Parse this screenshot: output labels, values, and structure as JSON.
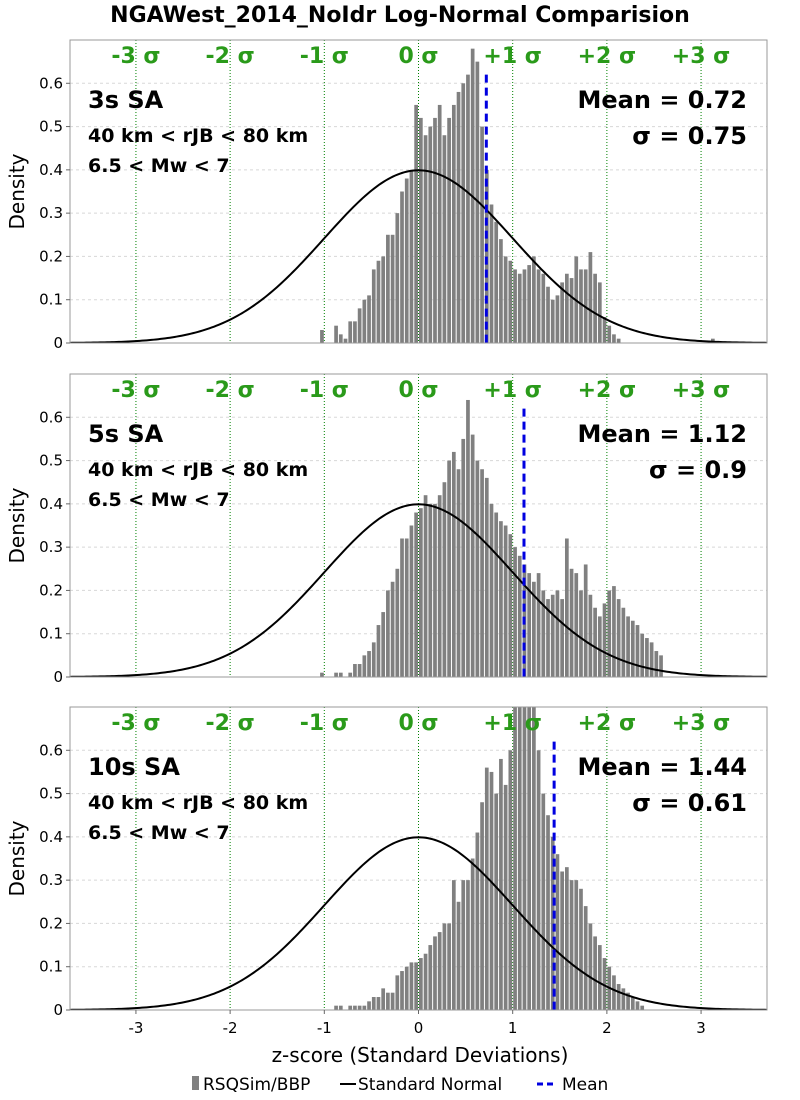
{
  "title": "NGAWest_2014_NoIdr Log-Normal Comparision",
  "xlabel": "z-score (Standard Deviations)",
  "ylabel": "Density",
  "xticks": [
    "-3",
    "-2",
    "-1",
    "0",
    "1",
    "2",
    "3"
  ],
  "yticks": [
    "0",
    "0.1",
    "0.2",
    "0.3",
    "0.4",
    "0.5",
    "0.6"
  ],
  "sigma_labels": [
    "-3 σ",
    "-2 σ",
    "-1 σ",
    "0 σ",
    "+1 σ",
    "+2 σ",
    "+3 σ"
  ],
  "legend": {
    "hist": "RSQSim/BBP",
    "normal": "Standard Normal",
    "mean": "Mean"
  },
  "colors": {
    "bars": "#808080",
    "mean": "#0000e0",
    "sigma_lines": "#008000",
    "sigma_text": "#2a9a1a"
  },
  "chart_data": [
    {
      "type": "bar",
      "label": "3s SA",
      "range_text": "40 km < rJB < 80 km",
      "mag_text": "6.5 < Mw < 7",
      "mean_text": "Mean = 0.72",
      "sigma_text": "σ = 0.75",
      "mean": 0.72,
      "bin_start": -1.05,
      "bin_width": 0.05,
      "densities": [
        0.03,
        0,
        0,
        0.04,
        0.02,
        0.01,
        0.05,
        0.05,
        0.08,
        0.1,
        0.11,
        0.17,
        0.19,
        0.2,
        0.25,
        0.25,
        0.3,
        0.35,
        0.38,
        0.4,
        0.55,
        0.52,
        0.48,
        0.5,
        0.52,
        0.55,
        0.48,
        0.52,
        0.55,
        0.58,
        0.6,
        0.62,
        0.68,
        0.65,
        0.5,
        0.4,
        0.32,
        0.28,
        0.24,
        0.2,
        0.19,
        0.17,
        0.16,
        0.17,
        0.18,
        0.2,
        0.17,
        0.16,
        0.13,
        0.1,
        0.11,
        0.14,
        0.16,
        0.15,
        0.2,
        0.17,
        0.17,
        0.21,
        0.16,
        0.14,
        0.06,
        0.04,
        0.02,
        0.01,
        0,
        0,
        0,
        0,
        0,
        0,
        0,
        0,
        0,
        0,
        0,
        0,
        0,
        0,
        0,
        0,
        0,
        0,
        0,
        0.01
      ],
      "xlim": [
        -3.7,
        3.7
      ],
      "ylim": [
        0,
        0.7
      ]
    },
    {
      "type": "bar",
      "label": "5s SA",
      "range_text": "40 km < rJB < 80 km",
      "mag_text": "6.5 < Mw < 7",
      "mean_text": "Mean = 1.12",
      "sigma_text": "σ = 0.9",
      "mean": 1.12,
      "bin_start": -1.05,
      "bin_width": 0.05,
      "densities": [
        0.01,
        0,
        0,
        0.01,
        0.01,
        0,
        0.01,
        0.03,
        0.03,
        0.05,
        0.06,
        0.08,
        0.12,
        0.15,
        0.2,
        0.22,
        0.25,
        0.32,
        0.32,
        0.35,
        0.38,
        0.39,
        0.42,
        0.4,
        0.4,
        0.42,
        0.45,
        0.5,
        0.52,
        0.48,
        0.55,
        0.64,
        0.56,
        0.5,
        0.48,
        0.46,
        0.4,
        0.38,
        0.36,
        0.35,
        0.33,
        0.3,
        0.28,
        0.26,
        0.24,
        0.22,
        0.24,
        0.2,
        0.18,
        0.19,
        0.2,
        0.18,
        0.32,
        0.25,
        0.24,
        0.2,
        0.26,
        0.19,
        0.16,
        0.14,
        0.17,
        0.2,
        0.21,
        0.18,
        0.16,
        0.14,
        0.13,
        0.12,
        0.1,
        0.09,
        0.08,
        0.06,
        0.05
      ],
      "xlim": [
        -3.7,
        3.7
      ],
      "ylim": [
        0,
        0.7
      ]
    },
    {
      "type": "bar",
      "label": "10s SA",
      "range_text": "40 km < rJB < 80 km",
      "mag_text": "6.5 < Mw < 7",
      "mean_text": "Mean = 1.44",
      "sigma_text": "σ = 0.61",
      "mean": 1.44,
      "bin_start": -0.9,
      "bin_width": 0.05,
      "densities": [
        0.01,
        0.01,
        0,
        0.01,
        0.01,
        0.01,
        0.01,
        0.02,
        0.03,
        0.03,
        0.05,
        0.04,
        0.04,
        0.08,
        0.09,
        0.1,
        0.11,
        0.11,
        0.12,
        0.13,
        0.15,
        0.17,
        0.18,
        0.2,
        0.2,
        0.3,
        0.25,
        0.3,
        0.3,
        0.35,
        0.41,
        0.48,
        0.56,
        0.55,
        0.5,
        0.58,
        0.52,
        0.6,
        0.7,
        0.72,
        0.75,
        0.7,
        0.7,
        0.6,
        0.5,
        0.45,
        0.4,
        0.36,
        0.32,
        0.33,
        0.3,
        0.3,
        0.28,
        0.24,
        0.2,
        0.17,
        0.15,
        0.12,
        0.1,
        0.08,
        0.06,
        0.05,
        0.04,
        0.03,
        0.02,
        0.01
      ],
      "xlim": [
        -3.7,
        3.7
      ],
      "ylim": [
        0,
        0.7
      ]
    }
  ]
}
